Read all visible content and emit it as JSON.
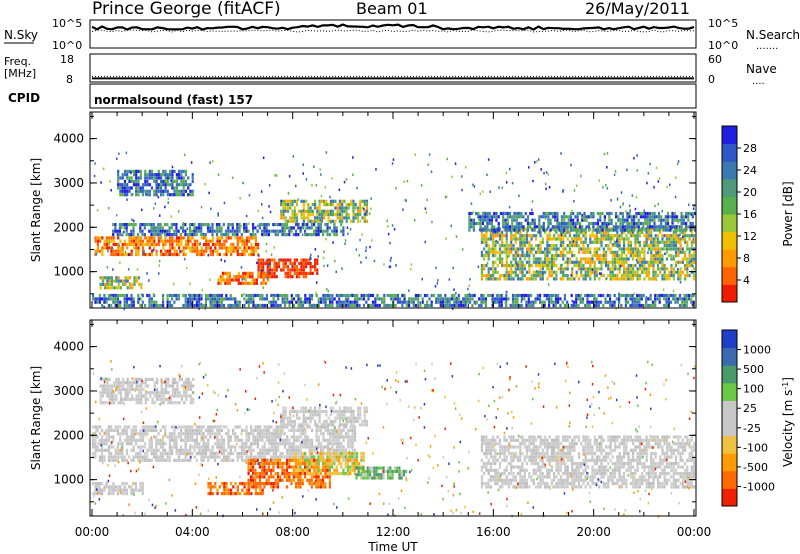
{
  "header": {
    "station": "Prince George (fitACF)",
    "beam": "Beam 01",
    "date": "26/May/2011"
  },
  "nsky_panel": {
    "left_label": "N.Sky",
    "left_ticks": [
      "10^5",
      "10^0"
    ],
    "right_ticks": [
      "10^5",
      "10^0"
    ],
    "right_label": "N.Search",
    "right_key": "......."
  },
  "freq_panel": {
    "left_label_1": "Freq.",
    "left_label_2": "[MHz]",
    "left_ticks": [
      "18",
      "8"
    ],
    "right_ticks": [
      "60",
      "0"
    ],
    "right_label": "Nave",
    "right_key": "....",
    "freq_mhz": 9.5,
    "nave": 14
  },
  "cpid": {
    "label": "CPID",
    "program": "normalsound (fast) 157"
  },
  "chart_data": [
    {
      "type": "heatmap",
      "name": "power",
      "ylabel": "Slant Range [km]",
      "xlabel": "Time UT",
      "ylim": [
        180,
        4600
      ],
      "yticks": [
        "4000",
        "3000",
        "2000",
        "1000"
      ],
      "colorbar_label": "Power [dB]",
      "colorbar_ticks": [
        "28",
        "24",
        "20",
        "16",
        "12",
        "8",
        "4"
      ],
      "colorbar_colors": [
        "#1f1fe0",
        "#2f57c8",
        "#3a7ab0",
        "#4f9a7a",
        "#57b04b",
        "#9ac83a",
        "#f0c000",
        "#ff9a00",
        "#ff6400",
        "#ee1b00"
      ],
      "bands": [
        {
          "t0": 0.1,
          "t1": 6.6,
          "r0": 1350,
          "r1": 1800,
          "level": "high"
        },
        {
          "t0": 6.6,
          "t1": 9.0,
          "r0": 850,
          "r1": 1300,
          "level": "max"
        },
        {
          "t0": 5.0,
          "t1": 7.0,
          "r0": 700,
          "r1": 1000,
          "level": "high"
        },
        {
          "t0": 0.3,
          "t1": 2.0,
          "r0": 600,
          "r1": 850,
          "level": "mid"
        },
        {
          "t0": 0.8,
          "t1": 10.0,
          "r0": 1800,
          "r1": 2100,
          "level": "low"
        },
        {
          "t0": 7.5,
          "t1": 11.0,
          "r0": 2100,
          "r1": 2600,
          "level": "mid"
        },
        {
          "t0": 1.0,
          "t1": 4.0,
          "r0": 2700,
          "r1": 3300,
          "level": "low"
        },
        {
          "t0": 15.5,
          "t1": 24.0,
          "r0": 800,
          "r1": 2000,
          "level": "mid"
        },
        {
          "t0": 15.0,
          "t1": 24.0,
          "r0": 1900,
          "r1": 2300,
          "level": "low"
        },
        {
          "t0": 0.0,
          "t1": 24.0,
          "r0": 200,
          "r1": 500,
          "level": "low"
        }
      ]
    },
    {
      "type": "heatmap",
      "name": "velocity",
      "ylabel": "Slant Range [km]",
      "xlabel": "Time UT",
      "ylim": [
        180,
        4600
      ],
      "yticks": [
        "4000",
        "3000",
        "2000",
        "1000"
      ],
      "xticks": [
        "00:00",
        "04:00",
        "08:00",
        "12:00",
        "16:00",
        "20:00",
        "00:00"
      ],
      "colorbar_label": "Velocity [m s^-1]",
      "colorbar_ticks": [
        "1000",
        "500",
        "100",
        "25",
        "-25",
        "-100",
        "-500",
        "-1000"
      ],
      "colorbar_colors": [
        "#1f3fc8",
        "#3a6ab0",
        "#4a9a6a",
        "#6ac846",
        "#c8c8c8",
        "#c8c8c8",
        "#f0c040",
        "#ff9a00",
        "#ff6a00",
        "#ee2000"
      ],
      "bands": [
        {
          "t0": 0.0,
          "t1": 10.5,
          "r0": 1400,
          "r1": 2200,
          "level": "ground"
        },
        {
          "t0": 6.2,
          "t1": 9.5,
          "r0": 800,
          "r1": 1450,
          "level": "neg_high"
        },
        {
          "t0": 4.6,
          "t1": 6.8,
          "r0": 650,
          "r1": 950,
          "level": "neg_high"
        },
        {
          "t0": 8.0,
          "t1": 10.8,
          "r0": 1100,
          "r1": 1600,
          "level": "neg_mid"
        },
        {
          "t0": 10.5,
          "t1": 12.5,
          "r0": 1000,
          "r1": 1300,
          "level": "pos_low"
        },
        {
          "t0": 7.5,
          "t1": 11.0,
          "r0": 2200,
          "r1": 2600,
          "level": "ground"
        },
        {
          "t0": 0.3,
          "t1": 4.0,
          "r0": 2700,
          "r1": 3300,
          "level": "ground"
        },
        {
          "t0": 15.5,
          "t1": 24.0,
          "r0": 800,
          "r1": 2000,
          "level": "ground"
        },
        {
          "t0": 0.0,
          "t1": 2.0,
          "r0": 650,
          "r1": 900,
          "level": "ground"
        }
      ]
    }
  ],
  "axis": {
    "time_label": "Time UT",
    "time_ticks": [
      "00:00",
      "04:00",
      "08:00",
      "12:00",
      "16:00",
      "20:00",
      "00:00"
    ],
    "range_label": "Slant Range [km]"
  },
  "colors": {
    "power_max": "#ee1b00",
    "ground_scatter": "#c8c8c8"
  }
}
